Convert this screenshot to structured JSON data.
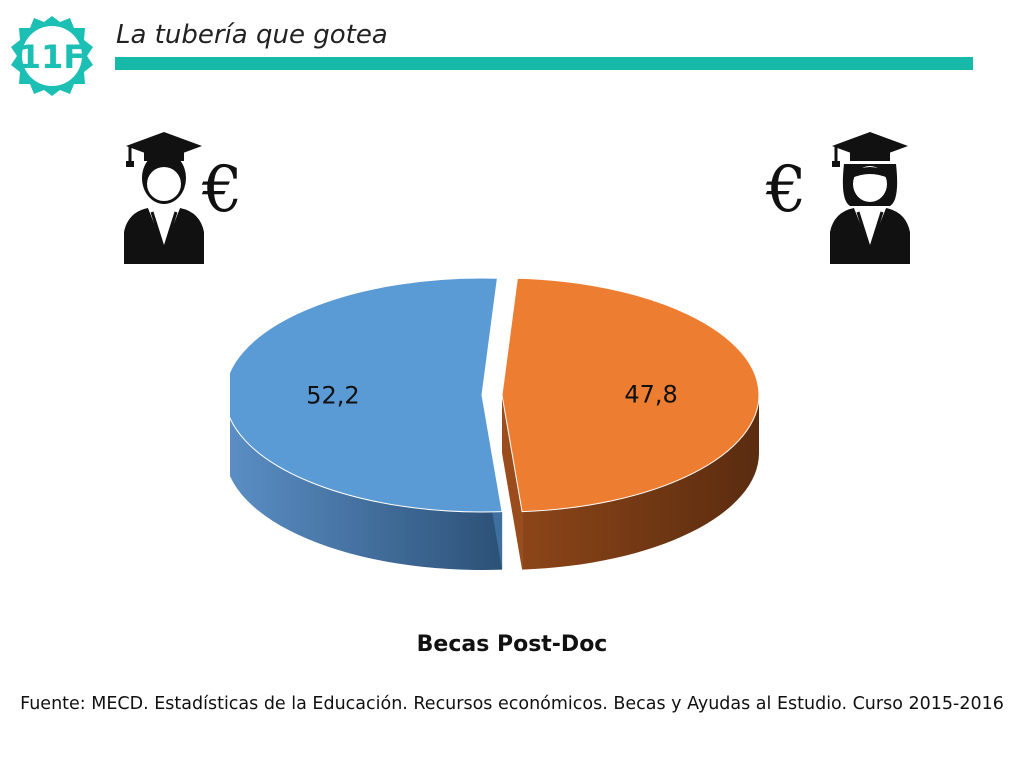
{
  "header": {
    "title": "La tubería que gotea"
  },
  "logo": {
    "text": "11F",
    "color": "#1bbfb4"
  },
  "icons": {
    "left": {
      "person": "male-graduate-icon",
      "currency": "€"
    },
    "right": {
      "person": "female-graduate-icon",
      "currency": "€"
    }
  },
  "chart_data": {
    "type": "pie",
    "title": "Becas Post-Doc",
    "labels": [
      "52,2",
      "47,8"
    ],
    "values": [
      52.2,
      47.8
    ],
    "colors": [
      "#5b9bd5",
      "#ed7d31"
    ],
    "legend": "none"
  },
  "footer": {
    "source": "Fuente: MECD. Estadísticas de la Educación. Recursos económicos. Becas y Ayudas al Estudio. Curso 2015-2016"
  }
}
